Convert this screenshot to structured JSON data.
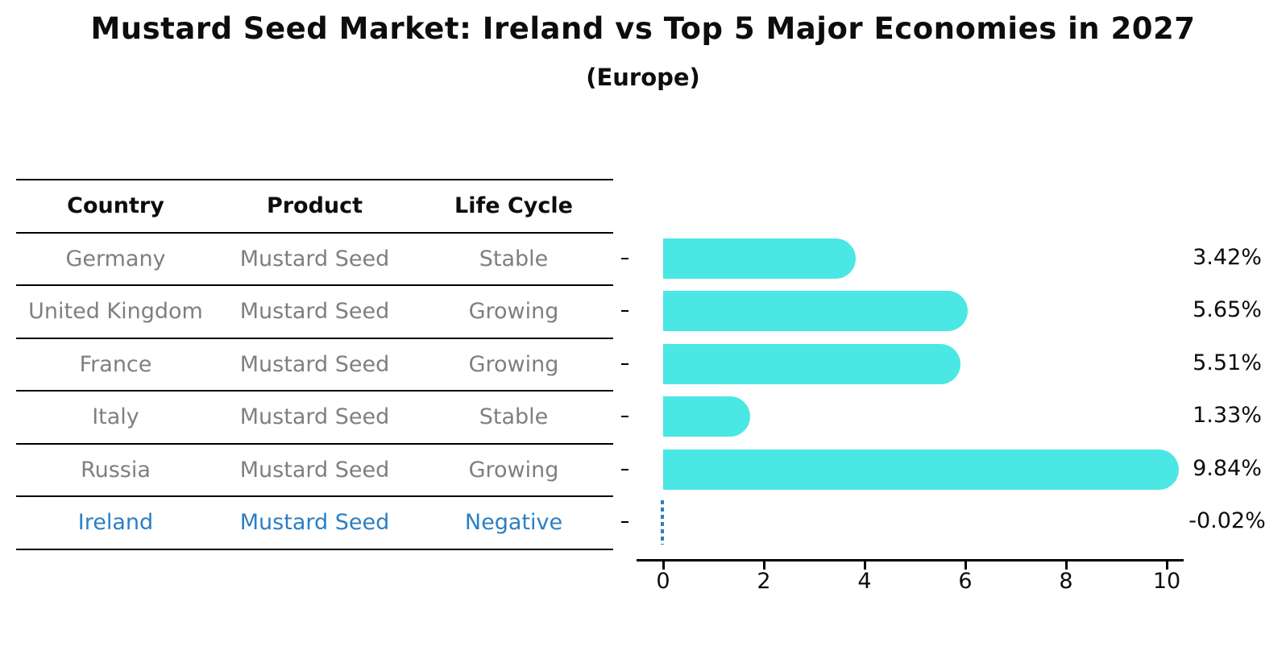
{
  "title": "Mustard Seed Market: Ireland vs Top 5 Major Economies in 2027",
  "subtitle": "(Europe)",
  "table": {
    "headers": [
      "Country",
      "Product",
      "Life Cycle"
    ],
    "rows": [
      {
        "country": "Germany",
        "product": "Mustard Seed",
        "life_cycle": "Stable",
        "highlight": false
      },
      {
        "country": "United Kingdom",
        "product": "Mustard Seed",
        "life_cycle": "Growing",
        "highlight": false
      },
      {
        "country": "France",
        "product": "Mustard Seed",
        "life_cycle": "Growing",
        "highlight": false
      },
      {
        "country": "Italy",
        "product": "Mustard Seed",
        "life_cycle": "Stable",
        "highlight": false
      },
      {
        "country": "Russia",
        "product": "Mustard Seed",
        "life_cycle": "Growing",
        "highlight": false
      },
      {
        "country": "Ireland",
        "product": "Mustard Seed",
        "life_cycle": "Negative",
        "highlight": true
      }
    ]
  },
  "chart_data": {
    "type": "bar",
    "orientation": "horizontal",
    "title": "Mustard Seed Market: Ireland vs Top 5 Major Economies in 2027",
    "subtitle": "(Europe)",
    "categories": [
      "Germany",
      "United Kingdom",
      "France",
      "Italy",
      "Russia",
      "Ireland"
    ],
    "values": [
      3.42,
      5.65,
      5.51,
      1.33,
      9.84,
      -0.02
    ],
    "value_labels": [
      "3.42%",
      "5.65%",
      "5.51%",
      "1.33%",
      "9.84%",
      "-0.02%"
    ],
    "x_ticks": [
      0,
      2,
      4,
      6,
      8,
      10
    ],
    "xlim": [
      0,
      10
    ],
    "grid": false,
    "legend": false,
    "highlight_index": 5,
    "bar_color": "#4ae7e4",
    "highlight_color": "#2b7fc4"
  },
  "colors": {
    "bar": "#4ae7e4",
    "highlight_blue": "#2b7fc4",
    "body_text": "#7f7f7f",
    "axis": "#000000"
  }
}
